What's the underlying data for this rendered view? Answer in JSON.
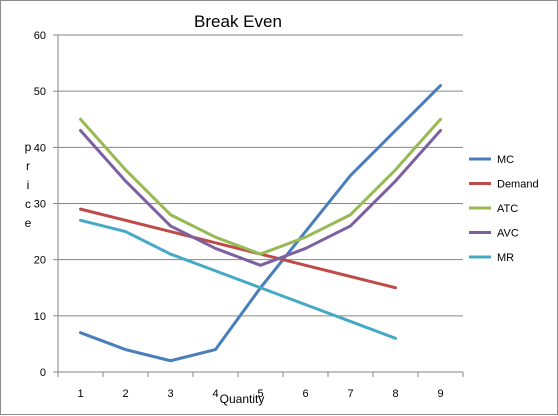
{
  "chart_data": {
    "type": "line",
    "title": "Break Even",
    "xlabel": "Quantity",
    "ylabel": "price",
    "x": [
      1,
      2,
      3,
      4,
      5,
      6,
      7,
      8,
      9
    ],
    "ylim": [
      0,
      60
    ],
    "yticks": [
      0,
      10,
      20,
      30,
      40,
      50,
      60
    ],
    "grid": true,
    "legend_position": "right",
    "series": [
      {
        "name": "MC",
        "color": "#4a7ebb",
        "values": [
          7,
          4,
          2,
          4,
          15,
          25,
          35,
          43,
          51
        ]
      },
      {
        "name": "Demand",
        "color": "#be4b48",
        "values": [
          29,
          27,
          25,
          23,
          21,
          19,
          17,
          15,
          null
        ]
      },
      {
        "name": "ATC",
        "color": "#98b954",
        "values": [
          45,
          36,
          28,
          24,
          21,
          24,
          28,
          36,
          45
        ]
      },
      {
        "name": "AVC",
        "color": "#7d60a0",
        "values": [
          43,
          34,
          26,
          22,
          19,
          22,
          26,
          34,
          43
        ]
      },
      {
        "name": "MR",
        "color": "#46aac5",
        "values": [
          27,
          25,
          21,
          18,
          15,
          12,
          9,
          6,
          null
        ]
      }
    ]
  }
}
